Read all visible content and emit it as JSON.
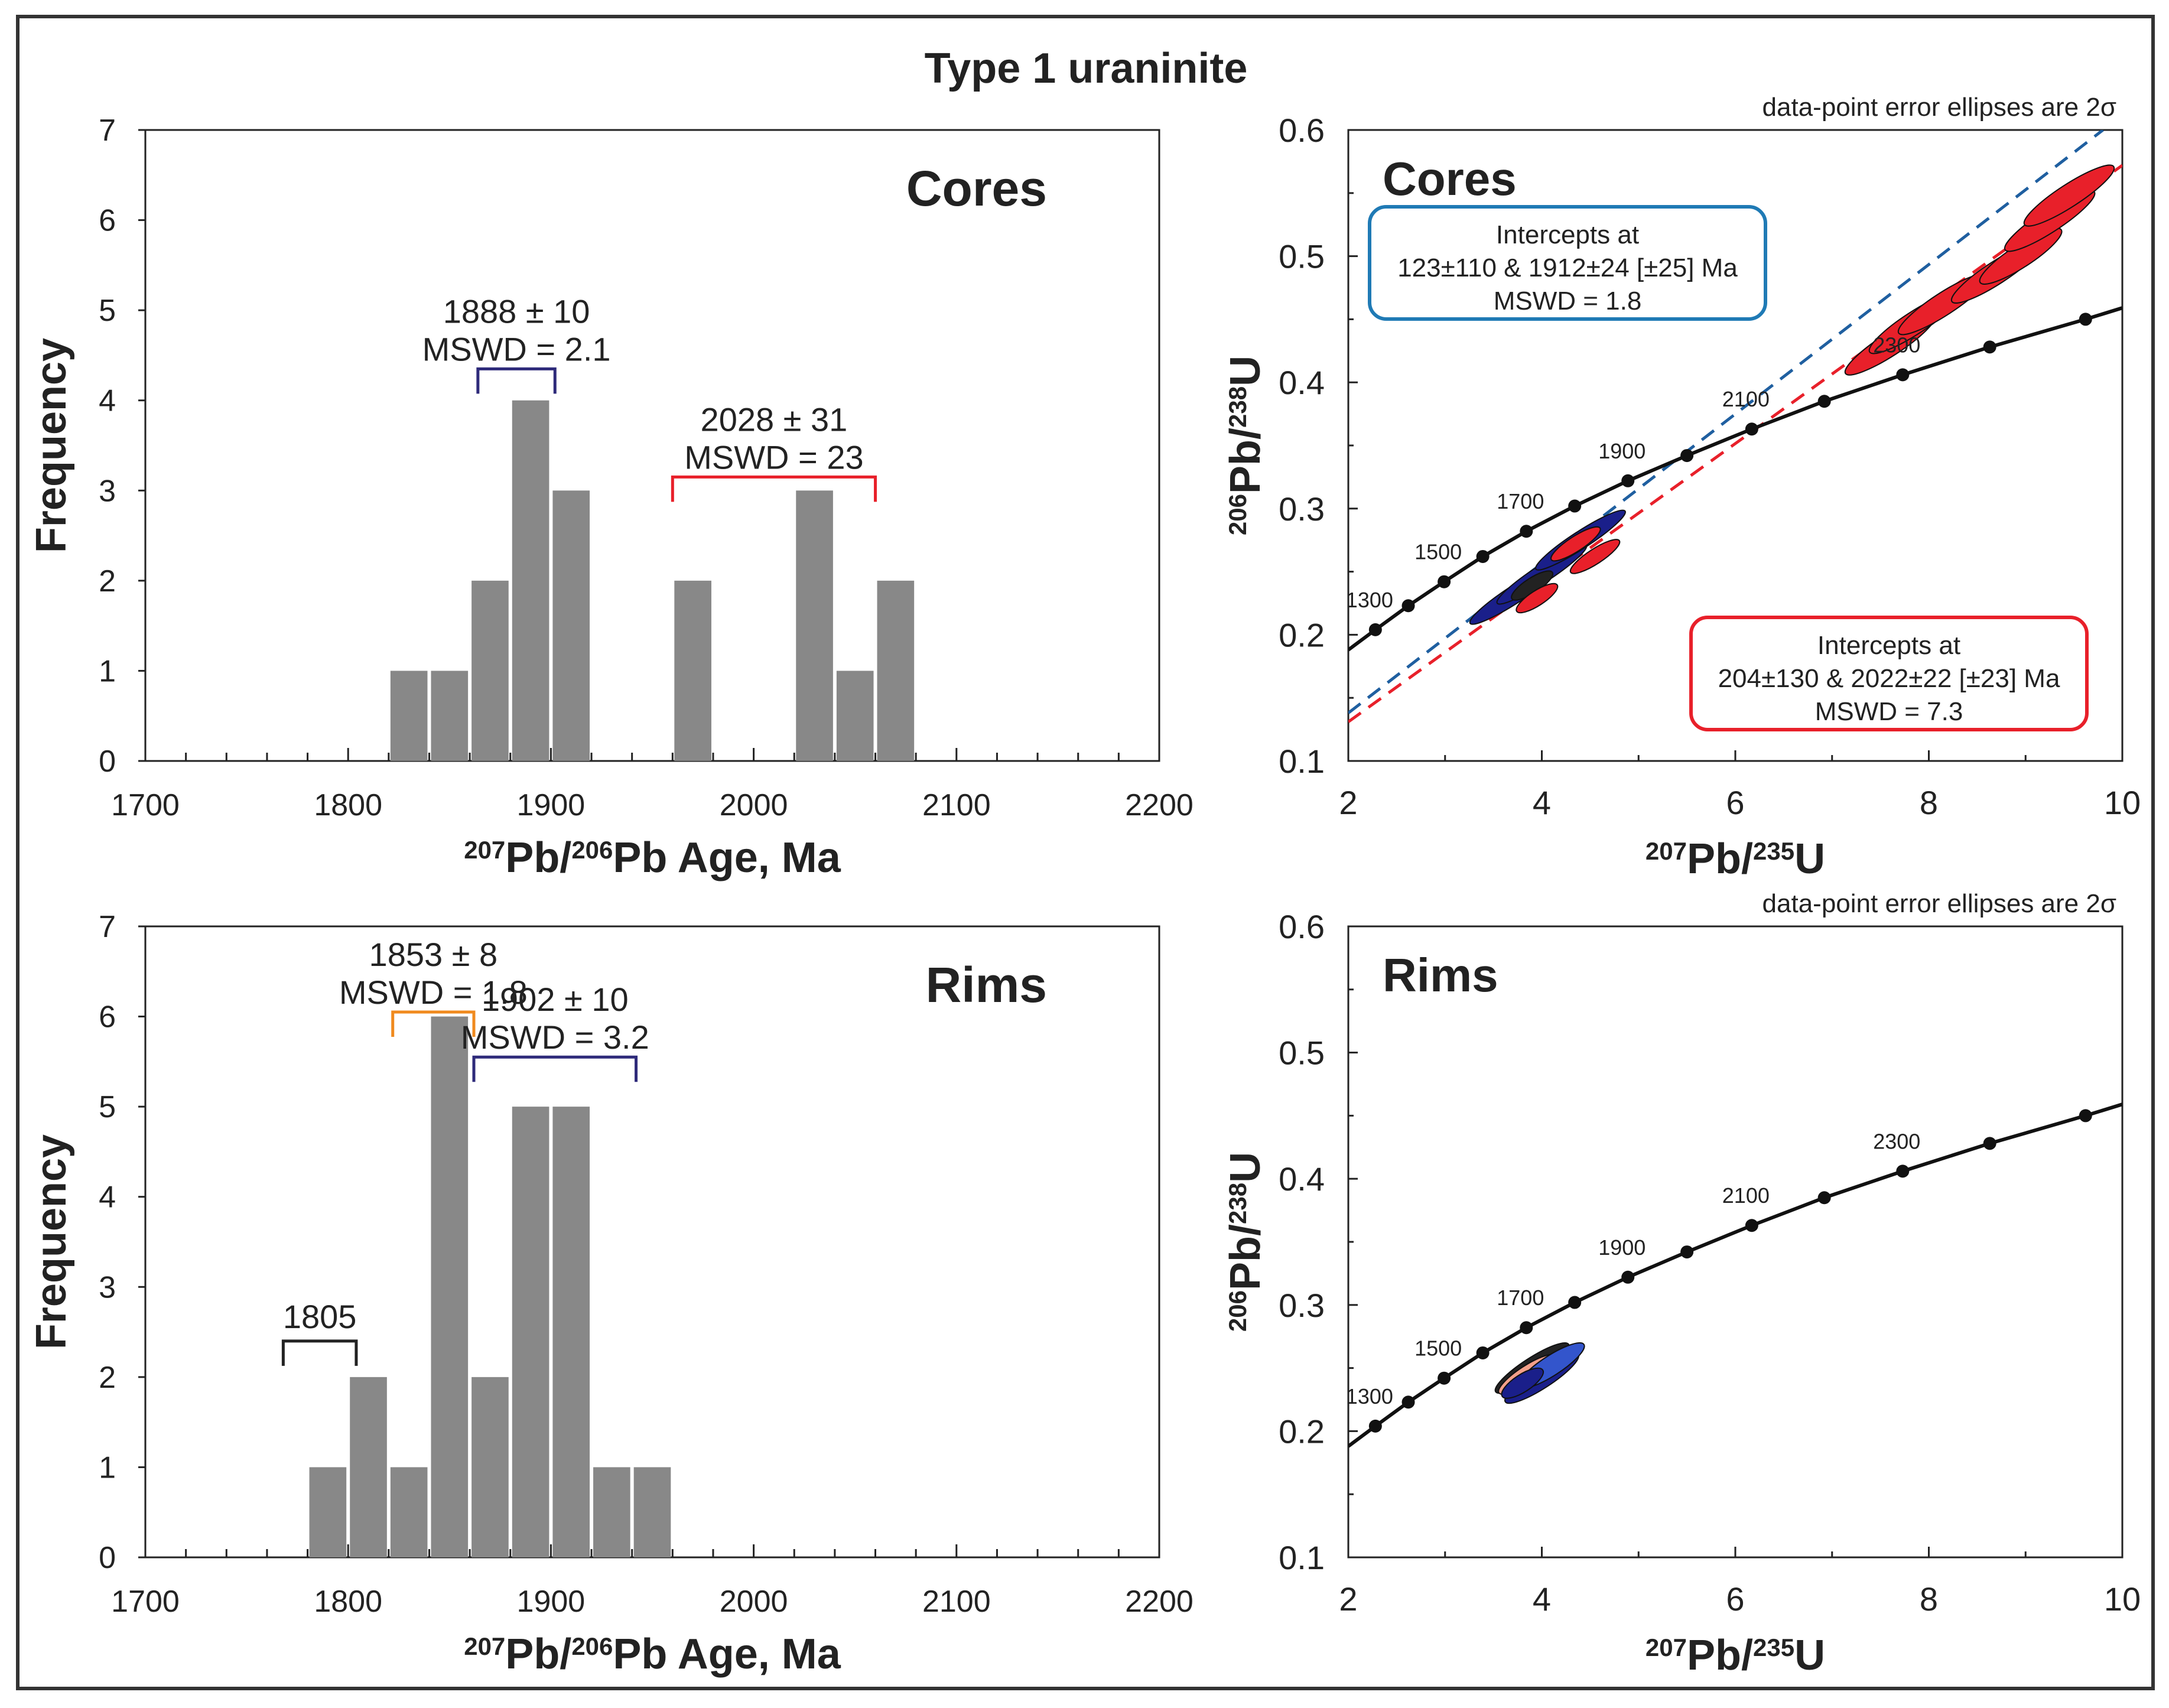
{
  "figure": {
    "title": "Type 1 uraninite"
  },
  "chart_data": [
    {
      "id": "hist_cores",
      "type": "bar",
      "panel_label": "Cores",
      "xlabel": "Pb/Pb Age, Ma",
      "xlabel_parts": {
        "sup1": "207",
        "t1": "Pb/",
        "sup2": "206",
        "t2": "Pb Age, Ma"
      },
      "ylabel": "Frequency",
      "xlim": [
        1700,
        2200
      ],
      "ylim": [
        0,
        7
      ],
      "x_ticks": [
        1700,
        1800,
        1900,
        2000,
        2100,
        2200
      ],
      "y_ticks": [
        0,
        1,
        2,
        3,
        4,
        5,
        6,
        7
      ],
      "bin_width": 20,
      "bins": [
        {
          "start": 1820,
          "count": 1
        },
        {
          "start": 1840,
          "count": 1
        },
        {
          "start": 1860,
          "count": 2
        },
        {
          "start": 1880,
          "count": 4
        },
        {
          "start": 1900,
          "count": 3
        },
        {
          "start": 1960,
          "count": 2
        },
        {
          "start": 2020,
          "count": 3
        },
        {
          "start": 2040,
          "count": 1
        },
        {
          "start": 2060,
          "count": 2
        }
      ],
      "bar_color": "#888888",
      "brackets": [
        {
          "label": "1888 ± 10",
          "mswd": "MSWD = 2.1",
          "from": 1864,
          "to": 1902,
          "y": 4.35,
          "color": "#2e2a7a"
        },
        {
          "label": "2028 ± 31",
          "mswd": "MSWD = 23",
          "from": 1960,
          "to": 2060,
          "y": 3.15,
          "color": "#e8202a"
        }
      ]
    },
    {
      "id": "hist_rims",
      "type": "bar",
      "panel_label": "Rims",
      "xlabel": "Pb/Pb Age, Ma",
      "xlabel_parts": {
        "sup1": "207",
        "t1": "Pb/",
        "sup2": "206",
        "t2": "Pb Age, Ma"
      },
      "ylabel": "Frequency",
      "xlim": [
        1700,
        2200
      ],
      "ylim": [
        0,
        7
      ],
      "x_ticks": [
        1700,
        1800,
        1900,
        2000,
        2100,
        2200
      ],
      "y_ticks": [
        0,
        1,
        2,
        3,
        4,
        5,
        6,
        7
      ],
      "bin_width": 20,
      "bins": [
        {
          "start": 1780,
          "count": 1
        },
        {
          "start": 1800,
          "count": 2
        },
        {
          "start": 1820,
          "count": 1
        },
        {
          "start": 1840,
          "count": 6
        },
        {
          "start": 1860,
          "count": 2
        },
        {
          "start": 1880,
          "count": 5
        },
        {
          "start": 1900,
          "count": 5
        },
        {
          "start": 1920,
          "count": 1
        },
        {
          "start": 1940,
          "count": 1
        }
      ],
      "bar_color": "#888888",
      "brackets": [
        {
          "label": "1805",
          "mswd": "",
          "from": 1768,
          "to": 1804,
          "y": 2.4,
          "color": "#222222"
        },
        {
          "label": "1853 ± 8",
          "mswd": "MSWD = 1.8",
          "from": 1822,
          "to": 1862,
          "y": 6.05,
          "color": "#f08a1e"
        },
        {
          "label": "1902 ± 10",
          "mswd": "MSWD = 3.2",
          "from": 1862,
          "to": 1942,
          "y": 5.55,
          "color": "#2e2a7a"
        }
      ]
    },
    {
      "id": "concordia_cores",
      "type": "scatter",
      "panel_label": "Cores",
      "note": "data-point error ellipses are 2σ",
      "xlabel_parts": {
        "sup1": "207",
        "t1": "Pb/",
        "sup2": "235",
        "t2": "U"
      },
      "ylabel_parts": {
        "sup1": "206",
        "t1": "Pb/",
        "sup2": "238",
        "t2": "U"
      },
      "xlim": [
        2,
        10
      ],
      "ylim": [
        0.1,
        0.6
      ],
      "x_ticks": [
        2,
        4,
        6,
        8,
        10
      ],
      "y_ticks": [
        0.1,
        0.2,
        0.3,
        0.4,
        0.5,
        0.6
      ],
      "concordia_points": [
        {
          "x": 2.28,
          "y": 0.204,
          "label": "1300"
        },
        {
          "x": 2.62,
          "y": 0.223,
          "label": ""
        },
        {
          "x": 2.99,
          "y": 0.242,
          "label": "1500"
        },
        {
          "x": 3.39,
          "y": 0.262,
          "label": ""
        },
        {
          "x": 3.84,
          "y": 0.282,
          "label": "1700"
        },
        {
          "x": 4.34,
          "y": 0.302,
          "label": ""
        },
        {
          "x": 4.89,
          "y": 0.322,
          "label": "1900"
        },
        {
          "x": 5.5,
          "y": 0.342,
          "label": ""
        },
        {
          "x": 6.17,
          "y": 0.363,
          "label": "2100"
        },
        {
          "x": 6.92,
          "y": 0.385,
          "label": ""
        },
        {
          "x": 7.73,
          "y": 0.406,
          "label": "2300"
        },
        {
          "x": 8.63,
          "y": 0.428,
          "label": ""
        },
        {
          "x": 9.62,
          "y": 0.45,
          "label": ""
        }
      ],
      "discordia_lines": [
        {
          "name": "blue",
          "color": "#1f5fa0",
          "from": [
            2.0,
            0.138
          ],
          "to": [
            9.8,
            0.6
          ]
        },
        {
          "name": "red",
          "color": "#e8202a",
          "from": [
            2.0,
            0.131
          ],
          "to": [
            10.0,
            0.572
          ]
        }
      ],
      "ellipses": [
        {
          "cx": 3.72,
          "cy": 0.232,
          "rx": 0.55,
          "ry": 0.005,
          "color": "#1a1f8a"
        },
        {
          "cx": 4.0,
          "cy": 0.248,
          "rx": 0.55,
          "ry": 0.005,
          "color": "#1a1f8a"
        },
        {
          "cx": 3.9,
          "cy": 0.239,
          "rx": 0.25,
          "ry": 0.004,
          "color": "#222222"
        },
        {
          "cx": 4.4,
          "cy": 0.275,
          "rx": 0.55,
          "ry": 0.005,
          "color": "#1a1f8a"
        },
        {
          "cx": 4.35,
          "cy": 0.272,
          "rx": 0.3,
          "ry": 0.004,
          "color": "#e8202a"
        },
        {
          "cx": 4.55,
          "cy": 0.262,
          "rx": 0.3,
          "ry": 0.004,
          "color": "#e8202a"
        },
        {
          "cx": 3.95,
          "cy": 0.229,
          "rx": 0.25,
          "ry": 0.004,
          "color": "#e8202a"
        },
        {
          "cx": 7.6,
          "cy": 0.43,
          "rx": 0.55,
          "ry": 0.007,
          "color": "#e8202a"
        },
        {
          "cx": 7.85,
          "cy": 0.447,
          "rx": 0.55,
          "ry": 0.007,
          "color": "#e8202a"
        },
        {
          "cx": 8.15,
          "cy": 0.462,
          "rx": 0.55,
          "ry": 0.007,
          "color": "#e8202a"
        },
        {
          "cx": 8.7,
          "cy": 0.487,
          "rx": 0.55,
          "ry": 0.007,
          "color": "#e8202a"
        },
        {
          "cx": 8.95,
          "cy": 0.5,
          "rx": 0.5,
          "ry": 0.007,
          "color": "#e8202a"
        },
        {
          "cx": 9.25,
          "cy": 0.528,
          "rx": 0.55,
          "ry": 0.007,
          "color": "#e8202a"
        },
        {
          "cx": 9.45,
          "cy": 0.548,
          "rx": 0.55,
          "ry": 0.007,
          "color": "#e8202a"
        }
      ],
      "boxes": [
        {
          "color": "#1f7ab5",
          "lines": [
            "Intercepts at",
            "123±110 & 1912±24   [±25]  Ma",
            "MSWD = 1.8"
          ]
        },
        {
          "color": "#e8202a",
          "lines": [
            "Intercepts at",
            "204±130 & 2022±22   [±23]  Ma",
            "MSWD = 7.3"
          ]
        }
      ]
    },
    {
      "id": "concordia_rims",
      "type": "scatter",
      "panel_label": "Rims",
      "note": "data-point error ellipses are 2σ",
      "xlabel_parts": {
        "sup1": "207",
        "t1": "Pb/",
        "sup2": "235",
        "t2": "U"
      },
      "ylabel_parts": {
        "sup1": "206",
        "t1": "Pb/",
        "sup2": "238",
        "t2": "U"
      },
      "xlim": [
        2,
        10
      ],
      "ylim": [
        0.1,
        0.6
      ],
      "x_ticks": [
        2,
        4,
        6,
        8,
        10
      ],
      "y_ticks": [
        0.1,
        0.2,
        0.3,
        0.4,
        0.5,
        0.6
      ],
      "concordia_points": [
        {
          "x": 2.28,
          "y": 0.204,
          "label": "1300"
        },
        {
          "x": 2.62,
          "y": 0.223,
          "label": ""
        },
        {
          "x": 2.99,
          "y": 0.242,
          "label": "1500"
        },
        {
          "x": 3.39,
          "y": 0.262,
          "label": ""
        },
        {
          "x": 3.84,
          "y": 0.282,
          "label": "1700"
        },
        {
          "x": 4.34,
          "y": 0.302,
          "label": ""
        },
        {
          "x": 4.89,
          "y": 0.322,
          "label": "1900"
        },
        {
          "x": 5.5,
          "y": 0.342,
          "label": ""
        },
        {
          "x": 6.17,
          "y": 0.363,
          "label": "2100"
        },
        {
          "x": 6.92,
          "y": 0.385,
          "label": ""
        },
        {
          "x": 7.73,
          "y": 0.406,
          "label": "2300"
        },
        {
          "x": 8.63,
          "y": 0.428,
          "label": ""
        },
        {
          "x": 9.62,
          "y": 0.45,
          "label": ""
        }
      ],
      "discordia_lines": [],
      "ellipses": [
        {
          "cx": 3.9,
          "cy": 0.25,
          "rx": 0.45,
          "ry": 0.006,
          "color": "#222222"
        },
        {
          "cx": 3.85,
          "cy": 0.245,
          "rx": 0.35,
          "ry": 0.005,
          "color": "#f4a08a"
        },
        {
          "cx": 4.0,
          "cy": 0.242,
          "rx": 0.45,
          "ry": 0.006,
          "color": "#1a1f8a"
        },
        {
          "cx": 4.1,
          "cy": 0.252,
          "rx": 0.4,
          "ry": 0.006,
          "color": "#3355cc"
        },
        {
          "cx": 3.8,
          "cy": 0.238,
          "rx": 0.25,
          "ry": 0.005,
          "color": "#1a1f8a"
        }
      ],
      "boxes": []
    }
  ]
}
